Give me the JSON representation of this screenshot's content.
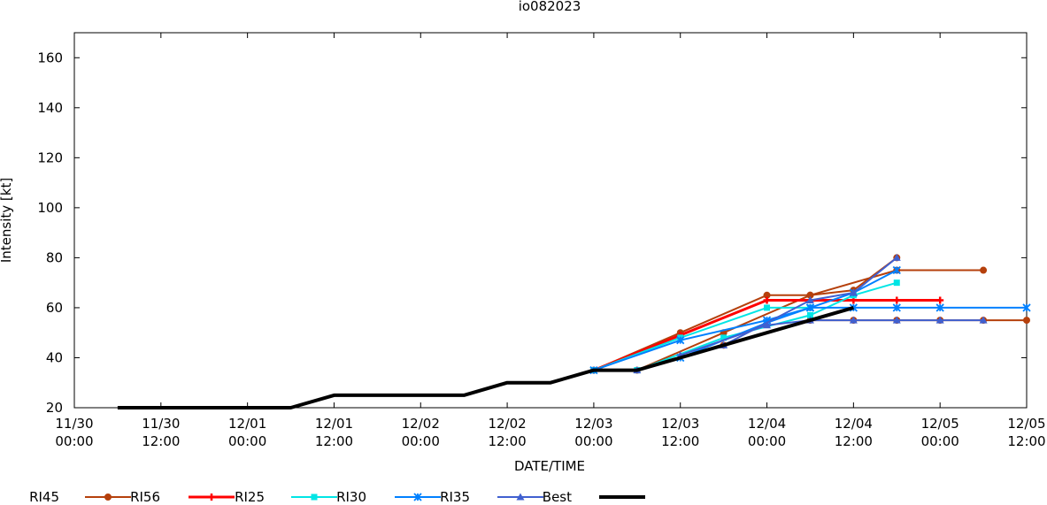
{
  "chart_data": {
    "type": "line",
    "title": "io082023",
    "xlabel": "DATE/TIME",
    "ylabel": "Intensity [kt]",
    "xlim": [
      "2023-11-30T00:00",
      "2023-12-05T12:00"
    ],
    "ylim": [
      20,
      170
    ],
    "x_ticks": [
      {
        "t": "2023-11-30T00:00",
        "line1": "11/30",
        "line2": "00:00"
      },
      {
        "t": "2023-11-30T12:00",
        "line1": "11/30",
        "line2": "12:00"
      },
      {
        "t": "2023-12-01T00:00",
        "line1": "12/01",
        "line2": "00:00"
      },
      {
        "t": "2023-12-01T12:00",
        "line1": "12/01",
        "line2": "12:00"
      },
      {
        "t": "2023-12-02T00:00",
        "line1": "12/02",
        "line2": "00:00"
      },
      {
        "t": "2023-12-02T12:00",
        "line1": "12/02",
        "line2": "12:00"
      },
      {
        "t": "2023-12-03T00:00",
        "line1": "12/03",
        "line2": "00:00"
      },
      {
        "t": "2023-12-03T12:00",
        "line1": "12/03",
        "line2": "12:00"
      },
      {
        "t": "2023-12-04T00:00",
        "line1": "12/04",
        "line2": "00:00"
      },
      {
        "t": "2023-12-04T12:00",
        "line1": "12/04",
        "line2": "12:00"
      },
      {
        "t": "2023-12-05T00:00",
        "line1": "12/05",
        "line2": "00:00"
      },
      {
        "t": "2023-12-05T12:00",
        "line1": "12/05",
        "line2": "12:00"
      }
    ],
    "y_ticks": [
      20,
      40,
      60,
      80,
      100,
      120,
      140,
      160
    ],
    "grid": false,
    "legend_position": "bottom",
    "series": [
      {
        "name": "RI45",
        "color": "#b5400c",
        "marker": "circle",
        "tracks": [
          [
            [
              "2023-12-03T00:00",
              35
            ],
            [
              "2023-12-03T12:00",
              50
            ],
            [
              "2023-12-04T00:00",
              65
            ],
            [
              "2023-12-04T06:00",
              65
            ],
            [
              "2023-12-04T12:00",
              67
            ],
            [
              "2023-12-04T18:00",
              80
            ]
          ],
          [
            [
              "2023-12-03T06:00",
              35
            ],
            [
              "2023-12-03T18:00",
              50
            ],
            [
              "2023-12-04T06:00",
              65
            ],
            [
              "2023-12-04T18:00",
              75
            ],
            [
              "2023-12-05T06:00",
              75
            ]
          ],
          [
            [
              "2023-12-03T18:00",
              45
            ],
            [
              "2023-12-04T06:00",
              55
            ],
            [
              "2023-12-04T12:00",
              55
            ],
            [
              "2023-12-04T18:00",
              55
            ],
            [
              "2023-12-05T00:00",
              55
            ],
            [
              "2023-12-05T06:00",
              55
            ],
            [
              "2023-12-05T12:00",
              55
            ]
          ]
        ]
      },
      {
        "name": "RI56",
        "color": "#ff0000",
        "marker": "plus",
        "tracks": [
          [
            [
              "2023-12-03T00:00",
              35
            ],
            [
              "2023-12-03T12:00",
              49
            ],
            [
              "2023-12-04T00:00",
              63
            ],
            [
              "2023-12-04T12:00",
              63
            ],
            [
              "2023-12-04T18:00",
              63
            ],
            [
              "2023-12-05T00:00",
              63
            ]
          ]
        ]
      },
      {
        "name": "RI25",
        "color": "#00e5e5",
        "marker": "square",
        "tracks": [
          [
            [
              "2023-12-03T00:00",
              35
            ],
            [
              "2023-12-03T12:00",
              48
            ],
            [
              "2023-12-04T00:00",
              60
            ],
            [
              "2023-12-04T06:00",
              60
            ]
          ],
          [
            [
              "2023-12-03T06:00",
              35
            ],
            [
              "2023-12-03T18:00",
              48
            ],
            [
              "2023-12-04T06:00",
              57
            ],
            [
              "2023-12-04T12:00",
              65
            ],
            [
              "2023-12-04T18:00",
              70
            ]
          ]
        ]
      },
      {
        "name": "RI30",
        "color": "#0080ff",
        "marker": "x",
        "tracks": [
          [
            [
              "2023-12-03T00:00",
              35
            ],
            [
              "2023-12-03T12:00",
              47
            ],
            [
              "2023-12-04T00:00",
              55
            ],
            [
              "2023-12-04T06:00",
              60
            ],
            [
              "2023-12-04T12:00",
              66
            ],
            [
              "2023-12-04T18:00",
              75
            ]
          ],
          [
            [
              "2023-12-03T12:00",
              40
            ],
            [
              "2023-12-04T00:00",
              54
            ],
            [
              "2023-12-04T06:00",
              60
            ],
            [
              "2023-12-04T12:00",
              60
            ],
            [
              "2023-12-04T18:00",
              60
            ],
            [
              "2023-12-05T00:00",
              60
            ],
            [
              "2023-12-05T12:00",
              60
            ]
          ]
        ]
      },
      {
        "name": "RI35",
        "color": "#4060d0",
        "marker": "triangle",
        "tracks": [
          [
            [
              "2023-12-03T06:00",
              35
            ],
            [
              "2023-12-03T18:00",
              45
            ],
            [
              "2023-12-04T06:00",
              63
            ],
            [
              "2023-12-04T12:00",
              66
            ],
            [
              "2023-12-04T18:00",
              80
            ]
          ],
          [
            [
              "2023-12-03T12:00",
              41
            ],
            [
              "2023-12-04T00:00",
              53
            ],
            [
              "2023-12-04T06:00",
              55
            ],
            [
              "2023-12-04T12:00",
              55
            ],
            [
              "2023-12-04T18:00",
              55
            ],
            [
              "2023-12-05T00:00",
              55
            ],
            [
              "2023-12-05T06:00",
              55
            ]
          ]
        ]
      },
      {
        "name": "Best",
        "color": "#000000",
        "marker": "none",
        "tracks": [
          [
            [
              "2023-11-30T06:00",
              20
            ],
            [
              "2023-11-30T12:00",
              20
            ],
            [
              "2023-11-30T18:00",
              20
            ],
            [
              "2023-12-01T00:00",
              20
            ],
            [
              "2023-12-01T06:00",
              20
            ],
            [
              "2023-12-01T12:00",
              25
            ],
            [
              "2023-12-01T18:00",
              25
            ],
            [
              "2023-12-02T00:00",
              25
            ],
            [
              "2023-12-02T06:00",
              25
            ],
            [
              "2023-12-02T12:00",
              30
            ],
            [
              "2023-12-02T18:00",
              30
            ],
            [
              "2023-12-03T00:00",
              35
            ],
            [
              "2023-12-03T06:00",
              35
            ],
            [
              "2023-12-03T12:00",
              40
            ],
            [
              "2023-12-03T18:00",
              45
            ],
            [
              "2023-12-04T00:00",
              50
            ],
            [
              "2023-12-04T06:00",
              55
            ],
            [
              "2023-12-04T12:00",
              60
            ]
          ]
        ]
      }
    ]
  }
}
